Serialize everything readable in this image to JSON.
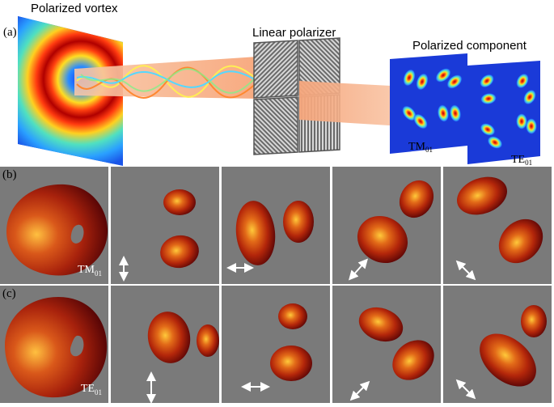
{
  "panel_a": {
    "letter": "(a)",
    "vortex_label": "Polarized vortex",
    "polarizer_label": "Linear polarizer",
    "component_label": "Polarized component",
    "tm_label_main": "TM",
    "tm_label_sub": "01",
    "te_label_main": "TE",
    "te_label_sub": "01"
  },
  "panel_b": {
    "letter": "(b)",
    "mode_main": "TM",
    "mode_sub": "01",
    "arrows": [
      "vertical",
      "horizontal",
      "diagonal-up-right",
      "diagonal-up-left"
    ]
  },
  "panel_c": {
    "letter": "(c)",
    "mode_main": "TE",
    "mode_sub": "01",
    "arrows": [
      "vertical",
      "horizontal",
      "diagonal-up-right",
      "diagonal-up-left"
    ]
  },
  "colors": {
    "background_gray": "#7a7a7a",
    "beam_core": "#fff1a8",
    "beam_mid": "#e0421a",
    "beam_dark": "#6b0000"
  }
}
